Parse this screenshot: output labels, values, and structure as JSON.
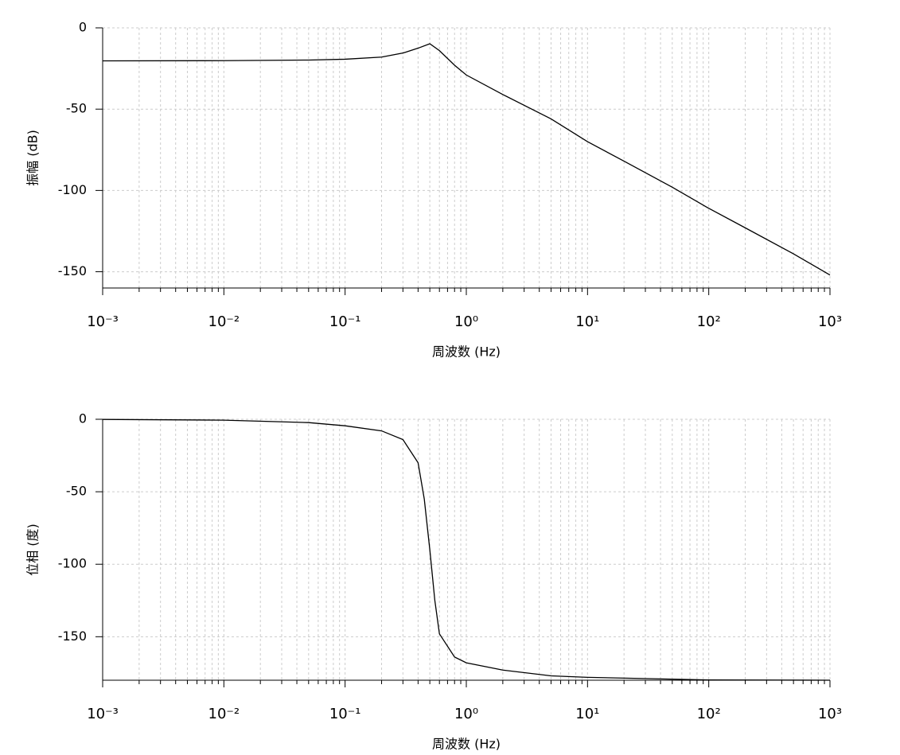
{
  "chart_data": [
    {
      "type": "line",
      "xlabel": "周波数 (Hz)",
      "ylabel": "振幅 (dB)",
      "xscale": "log",
      "grid": true,
      "color": "#000000",
      "x": [
        0.001,
        0.01,
        0.05,
        0.1,
        0.2,
        0.3,
        0.4,
        0.5,
        0.6,
        0.8,
        1,
        2,
        5,
        10,
        20,
        50,
        100,
        200,
        500,
        1000
      ],
      "values": [
        -20.3,
        -20.2,
        -19.8,
        -19.3,
        -18,
        -15.5,
        -12.5,
        -9.8,
        -14,
        -23,
        -29,
        -41,
        -56,
        -70,
        -82,
        -98,
        -111,
        -123,
        -139,
        -152
      ],
      "xlim": [
        0.001,
        1000
      ],
      "xticks": [
        {
          "value": 0.001,
          "label": "10⁻³"
        },
        {
          "value": 0.01,
          "label": "10⁻²"
        },
        {
          "value": 0.1,
          "label": "10⁻¹"
        },
        {
          "value": 1,
          "label": "10⁰"
        },
        {
          "value": 10,
          "label": "10¹"
        },
        {
          "value": 100,
          "label": "10²"
        },
        {
          "value": 1000,
          "label": "10³"
        }
      ],
      "ylim": [
        -160,
        0
      ],
      "yticks": [
        0,
        -50,
        -100,
        -150
      ]
    },
    {
      "type": "line",
      "xlabel": "周波数 (Hz)",
      "ylabel": "位相 (度)",
      "xscale": "log",
      "grid": true,
      "color": "#000000",
      "x": [
        0.001,
        0.01,
        0.05,
        0.1,
        0.2,
        0.3,
        0.4,
        0.45,
        0.5,
        0.55,
        0.6,
        0.8,
        1,
        2,
        5,
        10,
        100,
        1000
      ],
      "values": [
        -0.1,
        -0.6,
        -2.3,
        -4.5,
        -8,
        -14,
        -30,
        -55,
        -90,
        -125,
        -148,
        -164,
        -168,
        -173,
        -177,
        -178,
        -179.8,
        -180
      ],
      "xlim": [
        0.001,
        1000
      ],
      "xticks": [
        {
          "value": 0.001,
          "label": "10⁻³"
        },
        {
          "value": 0.01,
          "label": "10⁻²"
        },
        {
          "value": 0.1,
          "label": "10⁻¹"
        },
        {
          "value": 1,
          "label": "10⁰"
        },
        {
          "value": 10,
          "label": "10¹"
        },
        {
          "value": 100,
          "label": "10²"
        },
        {
          "value": 1000,
          "label": "10³"
        }
      ],
      "ylim": [
        -180,
        0
      ],
      "yticks": [
        0,
        -50,
        -100,
        -150
      ]
    }
  ]
}
